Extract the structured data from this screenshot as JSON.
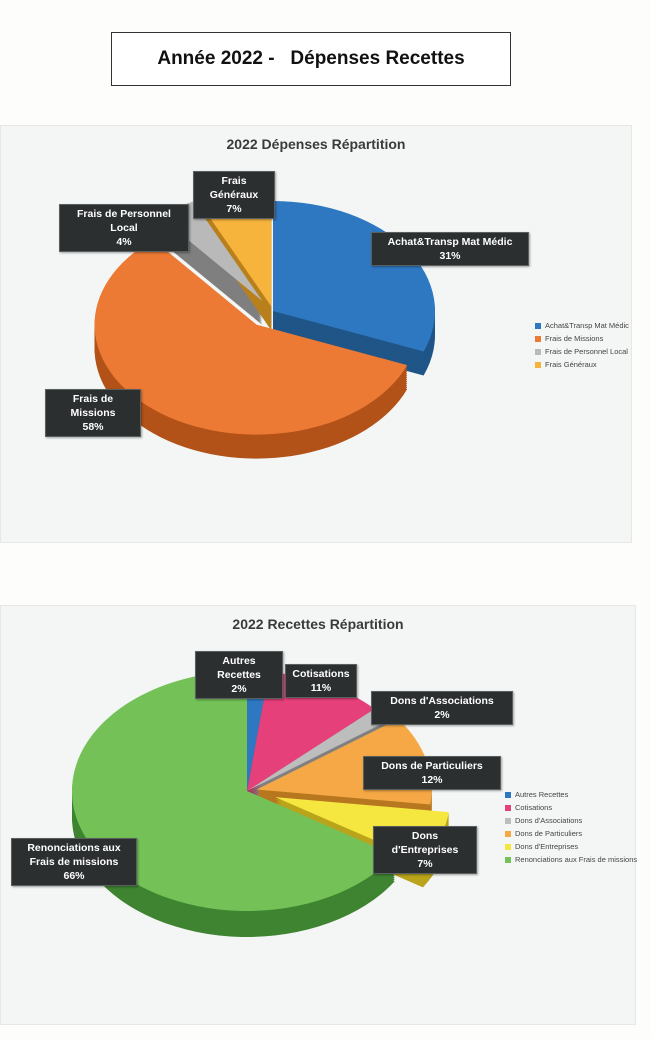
{
  "page_title": "Année 2022 -   Dépenses Recettes",
  "chart_data": [
    {
      "type": "pie",
      "title": "2022 Dépenses  Répartition",
      "slices": [
        {
          "name": "Achat&Transp Mat Médic",
          "label": "Achat&Transp Mat Médic",
          "pct_label": "31%",
          "value": 31,
          "color": "#2e78c2",
          "side": "#1f5587"
        },
        {
          "name": "Frais de Missions",
          "label": "Frais de Missions",
          "pct_label": "58%",
          "value": 58,
          "color": "#ec7a34",
          "side": "#b35218"
        },
        {
          "name": "Frais de Personnel Local",
          "label": "Frais de Personnel Local",
          "pct_label": "4%",
          "value": 4,
          "color": "#b9b9b9",
          "side": "#7f7f7f"
        },
        {
          "name": "Frais Généraux",
          "label": "Frais Généraux",
          "pct_label": "7%",
          "value": 7,
          "color": "#f7b43c",
          "side": "#b7801d"
        }
      ],
      "legend": [
        "Achat&Transp Mat Médic",
        "Frais de Missions",
        "Frais de Personnel Local",
        "Frais Généraux"
      ],
      "legend_position": "right"
    },
    {
      "type": "pie",
      "title": "2022 Recettes  Répartition",
      "slices": [
        {
          "name": "Autres Recettes",
          "label": "Autres Recettes",
          "pct_label": "2%",
          "value": 2,
          "color": "#2e78c2",
          "side": "#1f5587"
        },
        {
          "name": "Cotisations",
          "label": "Cotisations",
          "pct_label": "11%",
          "value": 11,
          "color": "#e6407a",
          "side": "#a82a55"
        },
        {
          "name": "Dons d'Associations",
          "label": "Dons d'Associations",
          "pct_label": "2%",
          "value": 2,
          "color": "#bdbdbd",
          "side": "#808080"
        },
        {
          "name": "Dons de Particuliers",
          "label": "Dons de Particuliers",
          "pct_label": "12%",
          "value": 12,
          "color": "#f5a845",
          "side": "#b7771f"
        },
        {
          "name": "Dons d'Entreprises",
          "label": "Dons d'Entreprises",
          "pct_label": "7%",
          "value": 7,
          "color": "#f6e640",
          "side": "#b9a41b"
        },
        {
          "name": "Renonciations aux Frais de missions",
          "label": "Renonciations aux Frais de missions",
          "pct_label": "66%",
          "value": 66,
          "color": "#74c257",
          "side": "#3e8431"
        }
      ],
      "legend": [
        "Autres Recettes",
        "Cotisations",
        "Dons d'Associations",
        "Dons de Particuliers",
        "Dons d'Entreprises",
        "Renonciations aux Frais de missions"
      ],
      "legend_position": "right"
    }
  ]
}
